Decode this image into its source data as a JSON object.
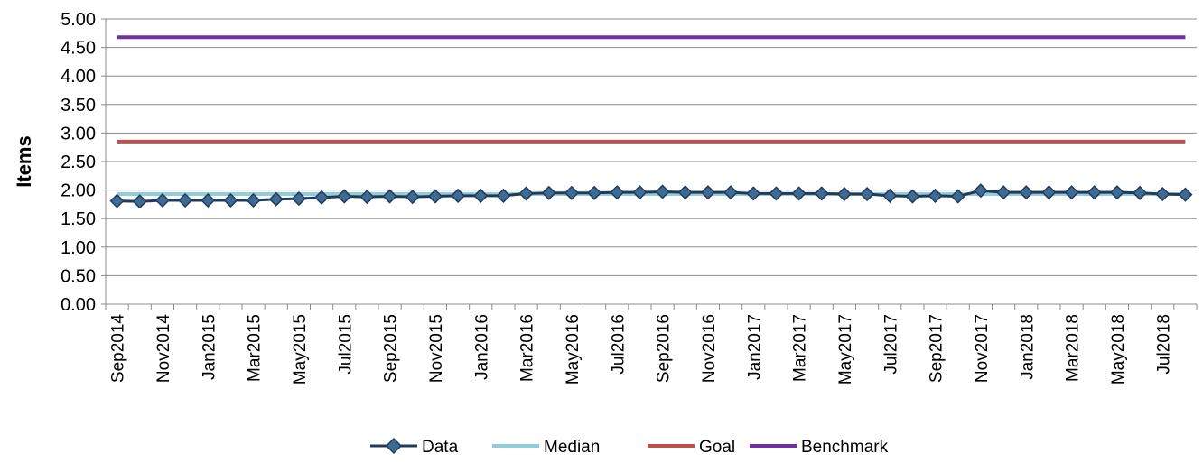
{
  "chart_data": {
    "type": "line",
    "title": "",
    "xlabel": "",
    "ylabel": "Items",
    "ylim": [
      0,
      5
    ],
    "yticks": [
      "0.00",
      "0.50",
      "1.00",
      "1.50",
      "2.00",
      "2.50",
      "3.00",
      "3.50",
      "4.00",
      "4.50",
      "5.00"
    ],
    "grid": "horizontal",
    "legend_position": "bottom",
    "categories": [
      "Sep2014",
      "Oct2014",
      "Nov2014",
      "Dec2014",
      "Jan2015",
      "Feb2015",
      "Mar2015",
      "Apr2015",
      "May2015",
      "Jun2015",
      "Jul2015",
      "Aug2015",
      "Sep2015",
      "Oct2015",
      "Nov2015",
      "Dec2015",
      "Jan2016",
      "Feb2016",
      "Mar2016",
      "Apr2016",
      "May2016",
      "Jun2016",
      "Jul2016",
      "Aug2016",
      "Sep2016",
      "Oct2016",
      "Nov2016",
      "Dec2016",
      "Jan2017",
      "Feb2017",
      "Mar2017",
      "Apr2017",
      "May2017",
      "Jun2017",
      "Jul2017",
      "Aug2017",
      "Sep2017",
      "Oct2017",
      "Nov2017",
      "Dec2017",
      "Jan2018",
      "Feb2018",
      "Mar2018",
      "Apr2018",
      "May2018",
      "Jun2018",
      "Jul2018",
      "Aug2018"
    ],
    "xtick_labels": [
      "Sep2014",
      "Nov2014",
      "Jan2015",
      "Mar2015",
      "May2015",
      "Jul2015",
      "Sep2015",
      "Nov2015",
      "Jan2016",
      "Mar2016",
      "May2016",
      "Jul2016",
      "Sep2016",
      "Nov2016",
      "Jan2017",
      "Mar2017",
      "May2017",
      "Jul2017",
      "Sep2017",
      "Nov2017",
      "Jan2018",
      "Mar2018",
      "May2018",
      "Jul2018"
    ],
    "series": [
      {
        "name": "Data",
        "color": "#1F3B5C",
        "marker": "diamond",
        "values": [
          1.81,
          1.8,
          1.82,
          1.82,
          1.82,
          1.82,
          1.82,
          1.84,
          1.85,
          1.87,
          1.89,
          1.88,
          1.89,
          1.88,
          1.89,
          1.9,
          1.9,
          1.9,
          1.94,
          1.95,
          1.95,
          1.95,
          1.96,
          1.96,
          1.97,
          1.96,
          1.96,
          1.96,
          1.94,
          1.94,
          1.94,
          1.94,
          1.93,
          1.93,
          1.9,
          1.89,
          1.9,
          1.89,
          1.99,
          1.96,
          1.96,
          1.96,
          1.96,
          1.96,
          1.96,
          1.95,
          1.93,
          1.92
        ]
      },
      {
        "name": "Median",
        "color": "#92CDDC",
        "values": [
          1.93,
          1.93,
          1.93,
          1.93,
          1.93,
          1.93,
          1.93,
          1.93,
          1.93,
          1.93,
          1.93,
          1.93,
          1.93,
          1.93,
          1.93,
          1.93,
          1.93,
          1.93,
          1.93,
          1.93,
          1.93,
          1.93,
          1.93,
          1.93,
          1.93,
          1.93,
          1.93,
          1.93,
          1.93,
          1.93,
          1.93,
          1.93,
          1.93,
          1.93,
          1.93,
          1.93,
          1.93,
          1.93,
          1.93,
          1.93,
          1.93,
          1.93,
          1.93,
          1.93,
          1.93,
          1.93,
          1.93,
          1.93
        ]
      },
      {
        "name": "Goal",
        "color": "#C0504D",
        "values": [
          2.85,
          2.85,
          2.85,
          2.85,
          2.85,
          2.85,
          2.85,
          2.85,
          2.85,
          2.85,
          2.85,
          2.85,
          2.85,
          2.85,
          2.85,
          2.85,
          2.85,
          2.85,
          2.85,
          2.85,
          2.85,
          2.85,
          2.85,
          2.85,
          2.85,
          2.85,
          2.85,
          2.85,
          2.85,
          2.85,
          2.85,
          2.85,
          2.85,
          2.85,
          2.85,
          2.85,
          2.85,
          2.85,
          2.85,
          2.85,
          2.85,
          2.85,
          2.85,
          2.85,
          2.85,
          2.85,
          2.85,
          2.85
        ]
      },
      {
        "name": "Benchmark",
        "color": "#7030A0",
        "values": [
          4.68,
          4.68,
          4.68,
          4.68,
          4.68,
          4.68,
          4.68,
          4.68,
          4.68,
          4.68,
          4.68,
          4.68,
          4.68,
          4.68,
          4.68,
          4.68,
          4.68,
          4.68,
          4.68,
          4.68,
          4.68,
          4.68,
          4.68,
          4.68,
          4.68,
          4.68,
          4.68,
          4.68,
          4.68,
          4.68,
          4.68,
          4.68,
          4.68,
          4.68,
          4.68,
          4.68,
          4.68,
          4.68,
          4.68,
          4.68,
          4.68,
          4.68,
          4.68,
          4.68,
          4.68,
          4.68,
          4.68,
          4.68
        ]
      }
    ]
  }
}
